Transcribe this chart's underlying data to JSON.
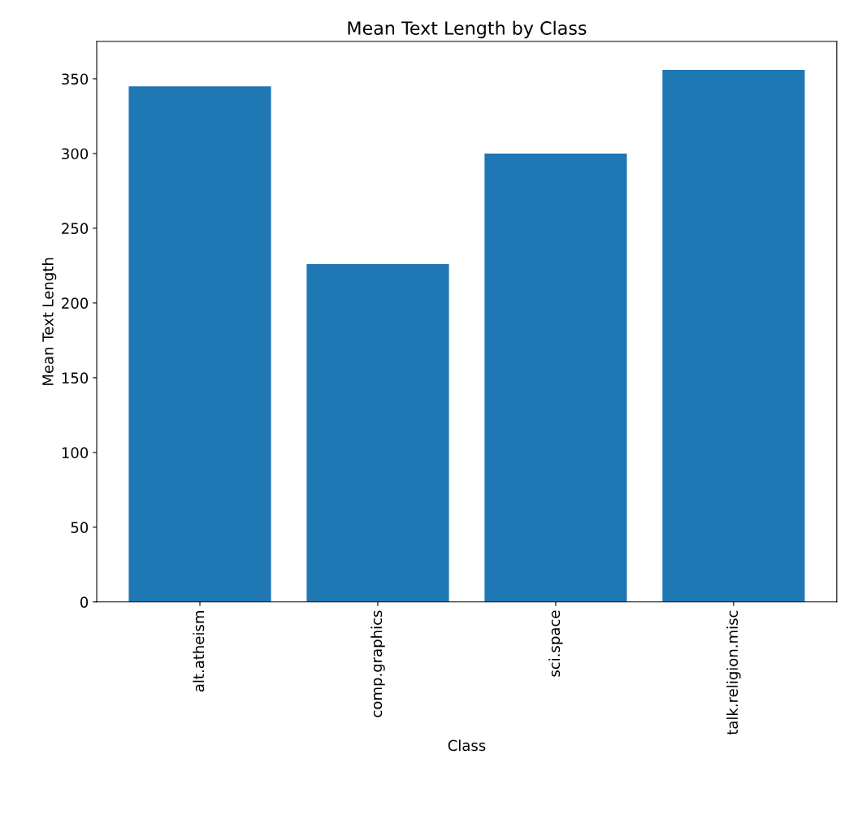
{
  "chart_data": {
    "type": "bar",
    "title": "Mean Text Length by Class",
    "xlabel": "Class",
    "ylabel": "Mean Text Length",
    "categories": [
      "alt.atheism",
      "comp.graphics",
      "sci.space",
      "talk.religion.misc"
    ],
    "values": [
      345,
      226,
      300,
      356
    ],
    "color": "#1f77b4",
    "ylim": [
      0,
      375
    ],
    "yticks": [
      0,
      50,
      100,
      150,
      200,
      250,
      300,
      350
    ],
    "grid": false
  }
}
